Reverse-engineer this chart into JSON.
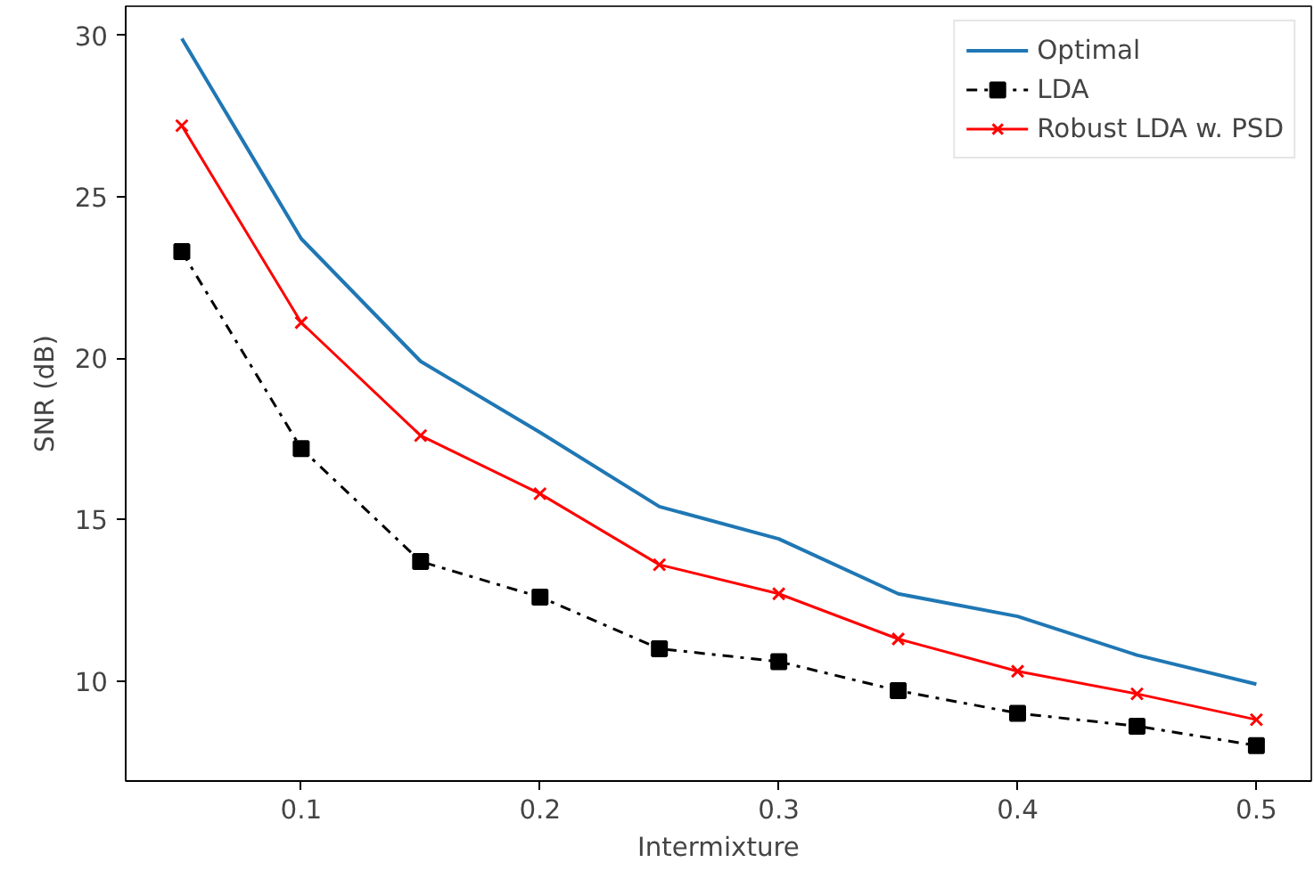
{
  "chart_data": {
    "type": "line",
    "xlabel": "Intermixture",
    "ylabel": "SNR (dB)",
    "x": [
      0.05,
      0.1,
      0.15,
      0.2,
      0.25,
      0.3,
      0.35,
      0.4,
      0.45,
      0.5
    ],
    "series": [
      {
        "name": "Optimal",
        "color": "#1f77b4",
        "marker": "none",
        "line_style": "solid",
        "values": [
          29.9,
          23.7,
          19.9,
          17.7,
          15.4,
          14.4,
          12.7,
          12.0,
          10.8,
          9.9
        ]
      },
      {
        "name": "LDA",
        "color": "#000000",
        "marker": "square",
        "line_style": "dashdot",
        "values": [
          23.3,
          17.2,
          13.7,
          12.6,
          11.0,
          10.6,
          9.7,
          9.0,
          8.6,
          8.0
        ]
      },
      {
        "name": "Robust LDA w. PSD",
        "color": "#ff0000",
        "marker": "cross",
        "line_style": "solid",
        "values": [
          27.2,
          21.1,
          17.6,
          15.8,
          13.6,
          12.7,
          11.3,
          10.3,
          9.6,
          8.8
        ]
      }
    ],
    "xlim": [
      0.0265,
      0.523
    ],
    "ylim": [
      6.9,
      30.9
    ],
    "xticks": [
      0.1,
      0.2,
      0.3,
      0.4,
      0.5
    ],
    "yticks": [
      10,
      15,
      20,
      25,
      30
    ],
    "grid": false,
    "legend": "top right"
  }
}
